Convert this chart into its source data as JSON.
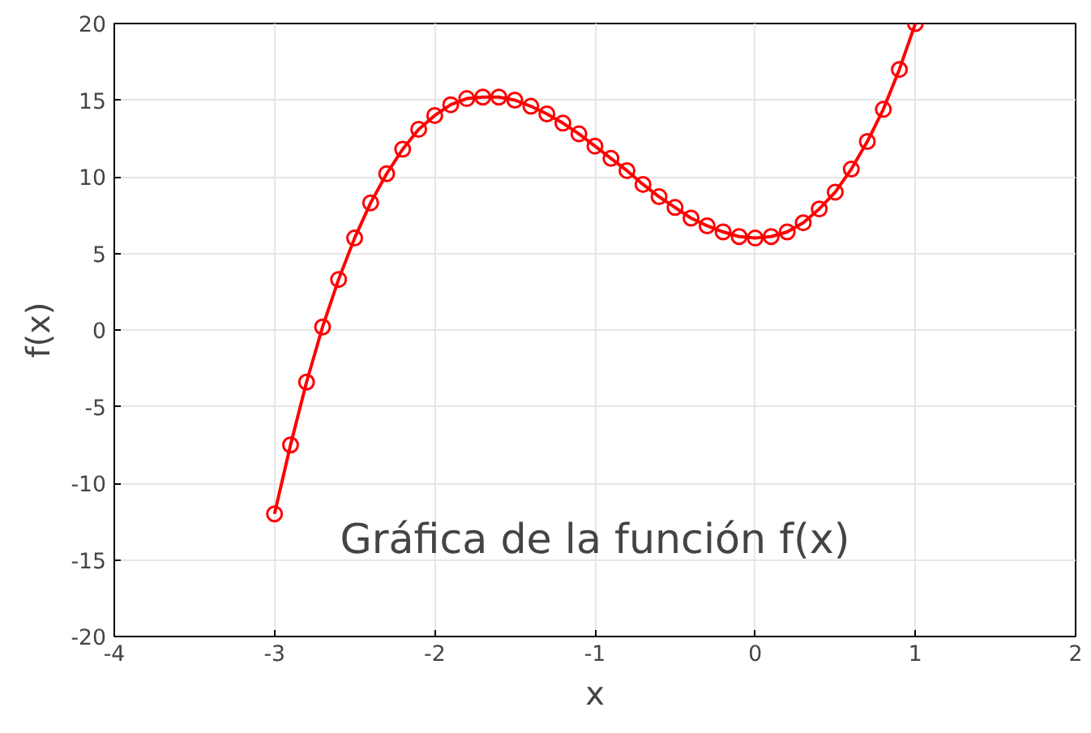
{
  "chart_data": {
    "type": "line",
    "title": "Gráfica de la función f(x)",
    "xlabel": "x",
    "ylabel": "f(x)",
    "x": [
      -3.0,
      -2.9,
      -2.8,
      -2.7,
      -2.6,
      -2.5,
      -2.4,
      -2.3,
      -2.2,
      -2.1,
      -2.0,
      -1.9,
      -1.8,
      -1.7,
      -1.6,
      -1.5,
      -1.4,
      -1.3,
      -1.2,
      -1.1,
      -1.0,
      -0.9,
      -0.8,
      -0.7,
      -0.6,
      -0.5,
      -0.4,
      -0.3,
      -0.2,
      -0.1,
      0.0,
      0.1,
      0.2,
      0.3,
      0.4,
      0.5,
      0.6,
      0.7,
      0.8,
      0.9,
      1.0
    ],
    "series": [
      {
        "color": "#ff0000",
        "values": [
          -12.0,
          -7.5,
          -3.4,
          0.2,
          3.3,
          6.0,
          8.3,
          10.2,
          11.8,
          13.1,
          14.0,
          14.7,
          15.1,
          15.2,
          15.2,
          15.0,
          14.6,
          14.1,
          13.5,
          12.8,
          12.0,
          11.2,
          10.4,
          9.5,
          8.7,
          8.0,
          7.3,
          6.8,
          6.4,
          6.1,
          6.0,
          6.1,
          6.4,
          7.0,
          7.9,
          9.0,
          10.5,
          12.3,
          14.4,
          17.0,
          20.0
        ]
      }
    ],
    "xlim": [
      -4,
      2
    ],
    "xticks": [
      -4,
      -3,
      -2,
      -1,
      0,
      1,
      2
    ],
    "ylim": [
      -20,
      20
    ],
    "yticks": [
      -20,
      -15,
      -10,
      -5,
      0,
      5,
      10,
      15,
      20
    ],
    "grid": true,
    "marker": "circle",
    "line_style": "solid"
  }
}
